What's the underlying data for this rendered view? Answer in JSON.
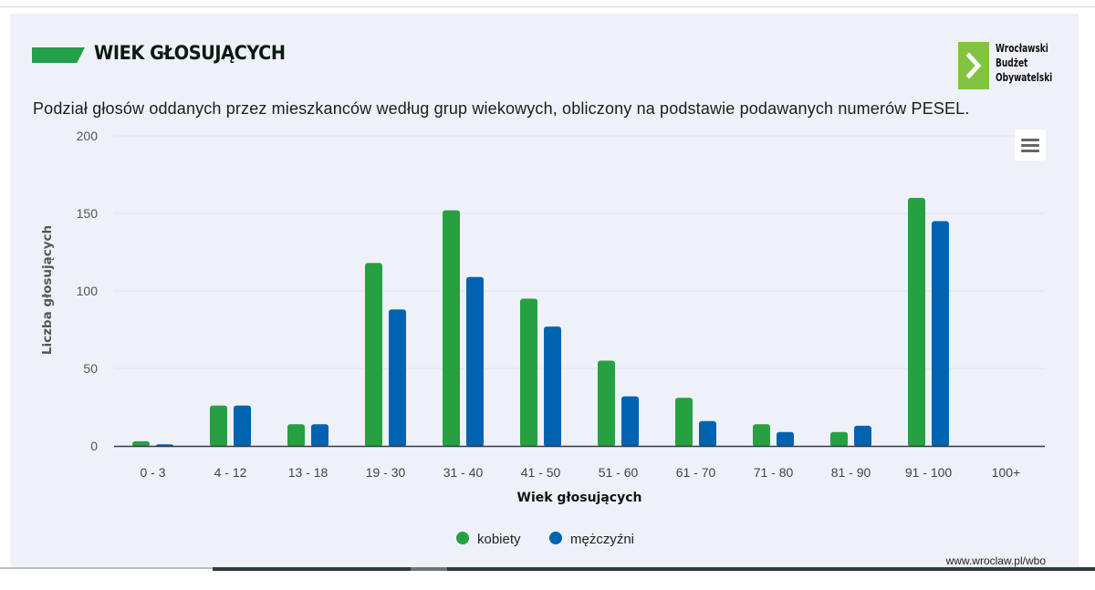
{
  "header": {
    "title": "WIEK GŁOSUJĄCYCH",
    "subtitle": "Podział głosów oddanych przez mieszkanców według grup wiekowych, obliczony na podstawie podawanych numerów PESEL.",
    "logo": {
      "icon": "chevron-right-icon",
      "lines": [
        "Wrocławski",
        "Budżet",
        "Obywatelski"
      ],
      "color": "#82c341"
    },
    "accent_color": "#22a04a"
  },
  "menu": {
    "icon": "hamburger-menu-icon"
  },
  "footer": {
    "url_text": "www.wroclaw.pl/wbo"
  },
  "chart_data": {
    "type": "bar",
    "title": "WIEK GŁOSUJĄCYCH",
    "subtitle": "Podział głosów oddanych przez mieszkanców według grup wiekowych, obliczony na podstawie podawanych numerów PESEL.",
    "xlabel": "Wiek głosujących",
    "ylabel": "Liczba głosujących",
    "ylim": [
      0,
      200
    ],
    "yticks": [
      0,
      50,
      100,
      150,
      200
    ],
    "grid": true,
    "legend_position": "bottom",
    "categories": [
      "0 - 3",
      "4 - 12",
      "13 - 18",
      "19 - 30",
      "31 - 40",
      "41 - 50",
      "51 - 60",
      "61 - 70",
      "71 - 80",
      "81 - 90",
      "91 - 100",
      "100+"
    ],
    "series": [
      {
        "name": "kobiety",
        "color": "#27a042",
        "values": [
          3,
          26,
          14,
          118,
          152,
          95,
          55,
          31,
          14,
          9,
          160,
          0
        ]
      },
      {
        "name": "mężczyźni",
        "color": "#0063b1",
        "values": [
          1,
          26,
          14,
          88,
          109,
          77,
          32,
          16,
          9,
          13,
          145,
          0
        ]
      }
    ]
  }
}
